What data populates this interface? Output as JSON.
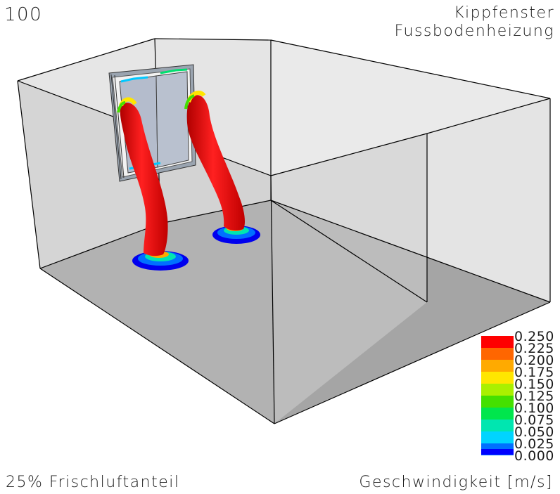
{
  "frame_number": "100",
  "title": {
    "line1": "Kippfenster",
    "line2": "Fussbodenheizung"
  },
  "footer": {
    "fresh_air": "25% Frischluftanteil",
    "variable": "Geschwindigkeit [m/s]"
  },
  "legend": {
    "entries": [
      {
        "label": "0.250",
        "color": "#ff0000"
      },
      {
        "label": "0.225",
        "color": "#ff6600"
      },
      {
        "label": "0.200",
        "color": "#ffaa00"
      },
      {
        "label": "0.175",
        "color": "#ffe600"
      },
      {
        "label": "0.150",
        "color": "#aaf000"
      },
      {
        "label": "0.125",
        "color": "#44e000"
      },
      {
        "label": "0.100",
        "color": "#00e64d"
      },
      {
        "label": "0.075",
        "color": "#00e6b0"
      },
      {
        "label": "0.050",
        "color": "#00d4ff"
      },
      {
        "label": "0.025",
        "color": "#0070ff"
      },
      {
        "label": "0.000",
        "color": "#0000ff"
      }
    ]
  },
  "colors": {
    "floor": "#a5a5a5",
    "wall": "#e3e3e3",
    "window_glass": "#b4bccc",
    "plume_core": "#e01010"
  }
}
